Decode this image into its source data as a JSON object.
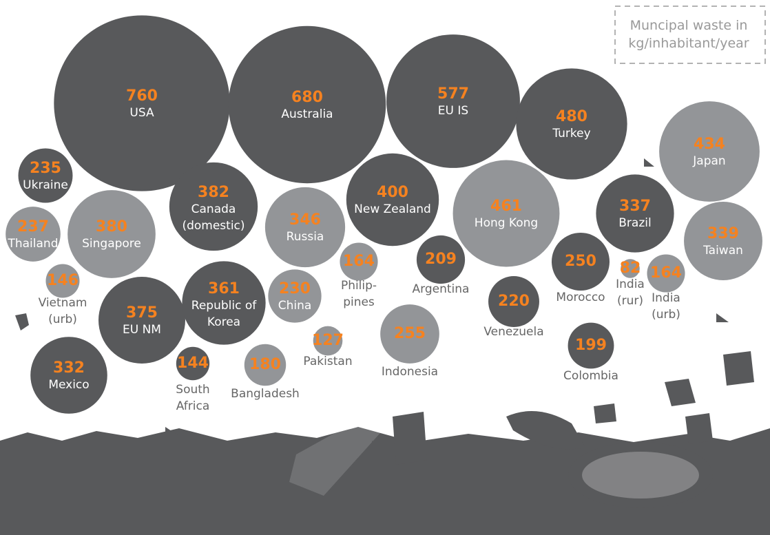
{
  "chart_data": {
    "type": "bubble",
    "title": "Muncipal waste in kg/inhabitant/year",
    "categories": [
      "USA",
      "Australia",
      "EU IS",
      "Turkey",
      "Japan",
      "Ukraine",
      "Canada (domestic)",
      "New Zealand",
      "Hong Kong",
      "Brazil",
      "Taiwan",
      "Thailand",
      "Singapore",
      "Russia",
      "Philip-pines",
      "Argentina",
      "Morocco",
      "India (rur)",
      "India (urb)",
      "Vietnam (urb)",
      "EU NM",
      "Republic of Korea",
      "China",
      "Venezuela",
      "Pakistan",
      "Indonesia",
      "Colombia",
      "Mexico",
      "South Africa",
      "Bangladesh"
    ],
    "values": [
      760,
      680,
      577,
      480,
      434,
      235,
      382,
      400,
      461,
      337,
      339,
      237,
      380,
      346,
      164,
      209,
      250,
      82,
      164,
      146,
      375,
      361,
      230,
      220,
      127,
      255,
      199,
      332,
      144,
      180
    ],
    "colors": [
      "#58595b",
      "#58595b",
      "#58595b",
      "#58595b",
      "#939598",
      "#58595b",
      "#58595b",
      "#58595b",
      "#939598",
      "#58595b",
      "#939598",
      "#939598",
      "#939598",
      "#939598",
      "#939598",
      "#58595b",
      "#58595b",
      "#939598",
      "#939598",
      "#939598",
      "#58595b",
      "#58595b",
      "#939598",
      "#58595b",
      "#939598",
      "#939598",
      "#58595b",
      "#58595b",
      "#58595b",
      "#939598"
    ],
    "value_color": "#f58220"
  }
}
